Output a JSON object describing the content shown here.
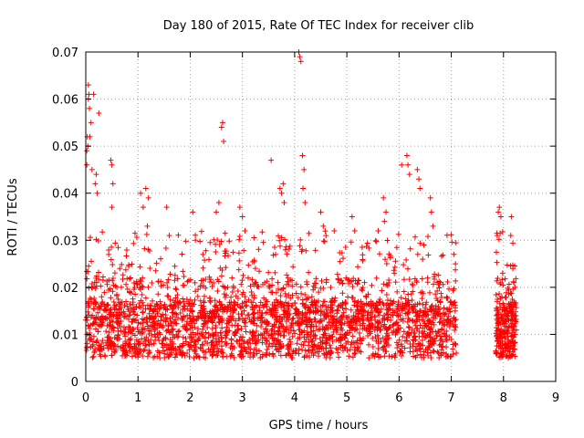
{
  "chart_data": {
    "type": "scatter",
    "title": "Day 180 of 2015, Rate Of TEC Index for receiver clib",
    "xlabel": "GPS time / hours",
    "ylabel": "ROTI / TECUs",
    "xlim": [
      0,
      9
    ],
    "ylim": [
      0,
      0.07
    ],
    "xticks": [
      "0",
      "1",
      "2",
      "3",
      "4",
      "5",
      "6",
      "7",
      "8",
      "9"
    ],
    "yticks": [
      "0",
      "0.01",
      "0.02",
      "0.03",
      "0.04",
      "0.05",
      "0.06",
      "0.07"
    ],
    "grid": true,
    "marker": "+",
    "color": "#ff0000",
    "series": [
      {
        "name": "ROTI",
        "points": [
          [
            0.02,
            0.046
          ],
          [
            0.02,
            0.049
          ],
          [
            0.03,
            0.052
          ],
          [
            0.04,
            0.05
          ],
          [
            0.05,
            0.06
          ],
          [
            0.05,
            0.063
          ],
          [
            0.06,
            0.061
          ],
          [
            0.07,
            0.058
          ],
          [
            0.08,
            0.052
          ],
          [
            0.1,
            0.055
          ],
          [
            0.12,
            0.045
          ],
          [
            0.15,
            0.061
          ],
          [
            0.18,
            0.042
          ],
          [
            0.2,
            0.044
          ],
          [
            0.22,
            0.04
          ],
          [
            0.25,
            0.057
          ],
          [
            0.48,
            0.047
          ],
          [
            0.5,
            0.046
          ],
          [
            0.52,
            0.042
          ],
          [
            0.5,
            0.037
          ],
          [
            1.05,
            0.04
          ],
          [
            1.1,
            0.037
          ],
          [
            1.15,
            0.041
          ],
          [
            1.2,
            0.039
          ],
          [
            1.18,
            0.033
          ],
          [
            1.55,
            0.037
          ],
          [
            1.6,
            0.031
          ],
          [
            2.05,
            0.036
          ],
          [
            2.1,
            0.03
          ],
          [
            2.6,
            0.054
          ],
          [
            2.62,
            0.055
          ],
          [
            2.64,
            0.051
          ],
          [
            2.55,
            0.038
          ],
          [
            2.5,
            0.036
          ],
          [
            2.95,
            0.037
          ],
          [
            3.0,
            0.035
          ],
          [
            3.05,
            0.032
          ],
          [
            3.55,
            0.047
          ],
          [
            3.75,
            0.04
          ],
          [
            3.78,
            0.042
          ],
          [
            3.8,
            0.038
          ],
          [
            3.72,
            0.041
          ],
          [
            4.08,
            0.07
          ],
          [
            4.1,
            0.069
          ],
          [
            4.12,
            0.068
          ],
          [
            4.15,
            0.048
          ],
          [
            4.18,
            0.045
          ],
          [
            4.16,
            0.041
          ],
          [
            4.2,
            0.038
          ],
          [
            4.5,
            0.036
          ],
          [
            4.55,
            0.033
          ],
          [
            4.6,
            0.031
          ],
          [
            5.1,
            0.035
          ],
          [
            5.15,
            0.032
          ],
          [
            5.7,
            0.039
          ],
          [
            5.72,
            0.034
          ],
          [
            5.75,
            0.036
          ],
          [
            5.6,
            0.032
          ],
          [
            6.15,
            0.048
          ],
          [
            6.17,
            0.046
          ],
          [
            6.2,
            0.044
          ],
          [
            6.05,
            0.046
          ],
          [
            6.35,
            0.045
          ],
          [
            6.38,
            0.043
          ],
          [
            6.4,
            0.041
          ],
          [
            6.6,
            0.039
          ],
          [
            6.62,
            0.036
          ],
          [
            6.65,
            0.033
          ],
          [
            7.05,
            0.027
          ],
          [
            7.08,
            0.025
          ],
          [
            7.9,
            0.036
          ],
          [
            7.92,
            0.037
          ],
          [
            7.95,
            0.035
          ],
          [
            7.88,
            0.031
          ],
          [
            8.15,
            0.035
          ],
          [
            8.18,
            0.024
          ],
          [
            8.2,
            0.021
          ],
          [
            8.22,
            0.02
          ]
        ]
      }
    ]
  }
}
